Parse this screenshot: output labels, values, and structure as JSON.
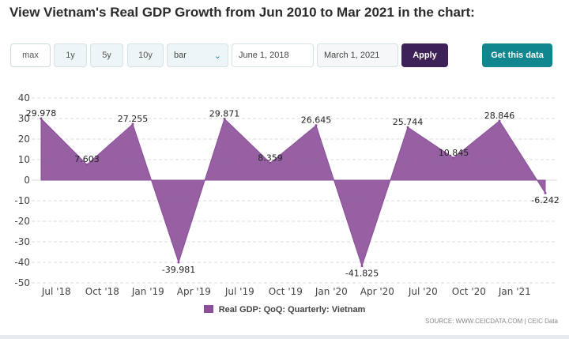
{
  "title": "View Vietnam's Real GDP Growth from Jun 2010 to Mar 2021 in the chart:",
  "controls": {
    "ranges": [
      "max",
      "1y",
      "5y",
      "10y"
    ],
    "chart_type": "bar",
    "start_date": "June 1, 2018",
    "end_date": "March 1, 2021",
    "apply_label": "Apply",
    "get_data_label": "Get this data"
  },
  "colors": {
    "series": "#8b4f99",
    "apply": "#3e2257",
    "get_data": "#12868f"
  },
  "chart_data": {
    "type": "area",
    "title": "",
    "xlabel": "",
    "ylabel": "",
    "ylim": [
      -50,
      40
    ],
    "yticks": [
      "40",
      "30",
      "20",
      "10",
      "0",
      "-10",
      "-20",
      "-30",
      "-40",
      "-50"
    ],
    "x_tick_labels": [
      "Jul '18",
      "Oct '18",
      "Jan '19",
      "Apr '19",
      "Jul '19",
      "Oct '19",
      "Jan '20",
      "Apr '20",
      "Jul '20",
      "Oct '20",
      "Jan '21"
    ],
    "x": [
      "Jun 2018",
      "Sep 2018",
      "Dec 2018",
      "Mar 2019",
      "Jun 2019",
      "Sep 2019",
      "Dec 2019",
      "Mar 2020",
      "Jun 2020",
      "Sep 2020",
      "Dec 2020",
      "Mar 2021"
    ],
    "series": [
      {
        "name": "Real GDP: QoQ: Quarterly: Vietnam",
        "values": [
          29.978,
          7.603,
          27.255,
          -39.981,
          29.871,
          8.359,
          26.645,
          -41.825,
          25.744,
          10.845,
          28.846,
          -6.242
        ],
        "labels": [
          "29.978",
          "7.603",
          "27.255",
          "-39.981",
          "29.871",
          "8.359",
          "26.645",
          "-41.825",
          "25.744",
          "10.845",
          "28.846",
          "-6.242"
        ]
      }
    ],
    "grid": true,
    "legend": "bottom-center"
  },
  "legend_label": "Real GDP: QoQ: Quarterly: Vietnam",
  "source": "SOURCE: WWW.CEICDATA.COM | CEIC Data"
}
